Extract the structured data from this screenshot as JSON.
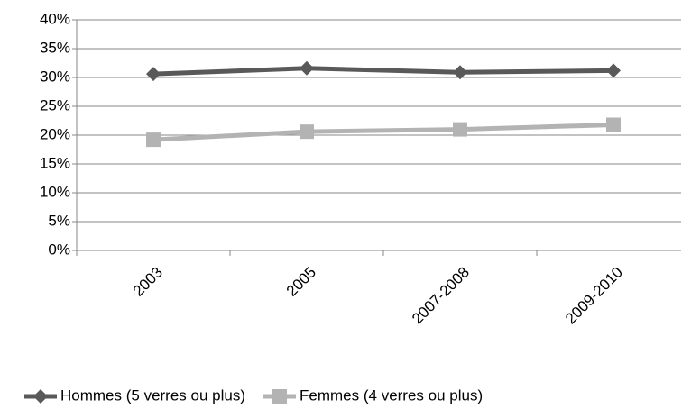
{
  "chart_data": {
    "type": "line",
    "categories": [
      "2003",
      "2005",
      "2007-2008",
      "2009-2010"
    ],
    "series": [
      {
        "name": "Hommes (5 verres ou plus)",
        "color": "#595959",
        "marker": "diamond",
        "values": [
          30.6,
          31.6,
          30.9,
          31.2
        ]
      },
      {
        "name": "Femmes (4 verres ou plus)",
        "color": "#b3b3b3",
        "marker": "square",
        "values": [
          19.2,
          20.6,
          21.0,
          21.8
        ]
      }
    ],
    "ylim": [
      0,
      40
    ],
    "yticks": [
      {
        "value": 0,
        "label": "0%"
      },
      {
        "value": 5,
        "label": "5%"
      },
      {
        "value": 10,
        "label": "10%"
      },
      {
        "value": 15,
        "label": "15%"
      },
      {
        "value": 20,
        "label": "20%"
      },
      {
        "value": 25,
        "label": "25%"
      },
      {
        "value": 30,
        "label": "30%"
      },
      {
        "value": 35,
        "label": "35%"
      },
      {
        "value": 40,
        "label": "40%"
      }
    ],
    "grid": true,
    "legend": "bottom"
  }
}
